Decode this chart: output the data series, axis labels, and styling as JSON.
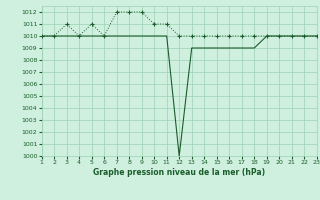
{
  "title": "Graphe pression niveau de la mer (hPa)",
  "background_color": "#cff0df",
  "grid_color": "#9ecfb4",
  "line_color": "#1a5c2a",
  "xlim": [
    1,
    23
  ],
  "ylim": [
    1000,
    1012.5
  ],
  "xticks": [
    1,
    2,
    3,
    4,
    5,
    6,
    7,
    8,
    9,
    10,
    11,
    12,
    13,
    14,
    15,
    16,
    17,
    18,
    19,
    20,
    21,
    22,
    23
  ],
  "yticks": [
    1000,
    1001,
    1002,
    1003,
    1004,
    1005,
    1006,
    1007,
    1008,
    1009,
    1010,
    1011,
    1012
  ],
  "series_solid_x": [
    1,
    2,
    3,
    4,
    5,
    6,
    7,
    8,
    9,
    10,
    11,
    12,
    13,
    14,
    15,
    16,
    17,
    18,
    19,
    20,
    21,
    22,
    23
  ],
  "series_solid_y": [
    1010,
    1010,
    1010,
    1010,
    1010,
    1010,
    1010,
    1010,
    1010,
    1010,
    1010,
    1000,
    1009,
    1009,
    1009,
    1009,
    1009,
    1009,
    1010,
    1010,
    1010,
    1010,
    1010
  ],
  "series_dot_x": [
    1,
    2,
    3,
    4,
    5,
    6,
    7,
    8,
    9,
    10,
    11,
    12,
    13,
    14,
    15,
    16,
    17,
    18,
    19,
    20,
    21,
    22,
    23
  ],
  "series_dot_y": [
    1010,
    1010,
    1011,
    1010,
    1011,
    1010,
    1012,
    1012,
    1012,
    1011,
    1011,
    1010,
    1010,
    1010,
    1010,
    1010,
    1010,
    1010,
    1010,
    1010,
    1010,
    1010,
    1010
  ]
}
